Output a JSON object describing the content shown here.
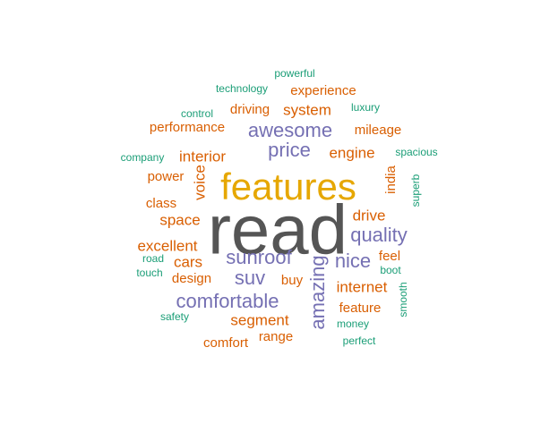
{
  "chart_data": {
    "type": "wordcloud",
    "palette": {
      "gray": "#555555",
      "gold": "#e6a700",
      "purple": "#7570b3",
      "orange": "#d95f02",
      "teal": "#1b9e77"
    },
    "words": [
      {
        "text": "read",
        "size_rank": 1,
        "color": "gray",
        "rotated": false
      },
      {
        "text": "features",
        "size_rank": 2,
        "color": "gold",
        "rotated": false
      },
      {
        "text": "awesome",
        "size_rank": 3,
        "color": "purple",
        "rotated": false
      },
      {
        "text": "sunroof",
        "size_rank": 3,
        "color": "purple",
        "rotated": false
      },
      {
        "text": "comfortable",
        "size_rank": 3,
        "color": "purple",
        "rotated": false
      },
      {
        "text": "amazing",
        "size_rank": 3,
        "color": "purple",
        "rotated": true
      },
      {
        "text": "price",
        "size_rank": 3,
        "color": "purple",
        "rotated": false
      },
      {
        "text": "quality",
        "size_rank": 3,
        "color": "purple",
        "rotated": false
      },
      {
        "text": "nice",
        "size_rank": 3,
        "color": "purple",
        "rotated": false
      },
      {
        "text": "suv",
        "size_rank": 3,
        "color": "purple",
        "rotated": false
      },
      {
        "text": "segment",
        "size_rank": 4,
        "color": "orange",
        "rotated": false
      },
      {
        "text": "engine",
        "size_rank": 4,
        "color": "orange",
        "rotated": false
      },
      {
        "text": "interior",
        "size_rank": 4,
        "color": "orange",
        "rotated": false
      },
      {
        "text": "drive",
        "size_rank": 4,
        "color": "orange",
        "rotated": false
      },
      {
        "text": "system",
        "size_rank": 4,
        "color": "orange",
        "rotated": false
      },
      {
        "text": "space",
        "size_rank": 4,
        "color": "orange",
        "rotated": false
      },
      {
        "text": "excellent",
        "size_rank": 4,
        "color": "orange",
        "rotated": false
      },
      {
        "text": "cars",
        "size_rank": 4,
        "color": "orange",
        "rotated": false
      },
      {
        "text": "internet",
        "size_rank": 4,
        "color": "orange",
        "rotated": false
      },
      {
        "text": "voice",
        "size_rank": 4,
        "color": "orange",
        "rotated": true
      },
      {
        "text": "driving",
        "size_rank": 5,
        "color": "orange",
        "rotated": false
      },
      {
        "text": "experience",
        "size_rank": 5,
        "color": "orange",
        "rotated": false
      },
      {
        "text": "performance",
        "size_rank": 5,
        "color": "orange",
        "rotated": false
      },
      {
        "text": "mileage",
        "size_rank": 5,
        "color": "orange",
        "rotated": false
      },
      {
        "text": "power",
        "size_rank": 5,
        "color": "orange",
        "rotated": false
      },
      {
        "text": "class",
        "size_rank": 5,
        "color": "orange",
        "rotated": false
      },
      {
        "text": "design",
        "size_rank": 5,
        "color": "orange",
        "rotated": false
      },
      {
        "text": "buy",
        "size_rank": 5,
        "color": "orange",
        "rotated": false
      },
      {
        "text": "feel",
        "size_rank": 5,
        "color": "orange",
        "rotated": false
      },
      {
        "text": "feature",
        "size_rank": 5,
        "color": "orange",
        "rotated": false
      },
      {
        "text": "range",
        "size_rank": 5,
        "color": "orange",
        "rotated": false
      },
      {
        "text": "comfort",
        "size_rank": 5,
        "color": "orange",
        "rotated": false
      },
      {
        "text": "india",
        "size_rank": 5,
        "color": "orange",
        "rotated": true
      },
      {
        "text": "technology",
        "size_rank": 6,
        "color": "teal",
        "rotated": false
      },
      {
        "text": "control",
        "size_rank": 6,
        "color": "teal",
        "rotated": false
      },
      {
        "text": "luxury",
        "size_rank": 6,
        "color": "teal",
        "rotated": false
      },
      {
        "text": "powerful",
        "size_rank": 6,
        "color": "teal",
        "rotated": false
      },
      {
        "text": "company",
        "size_rank": 6,
        "color": "teal",
        "rotated": false
      },
      {
        "text": "spacious",
        "size_rank": 6,
        "color": "teal",
        "rotated": false
      },
      {
        "text": "road",
        "size_rank": 6,
        "color": "teal",
        "rotated": false
      },
      {
        "text": "touch",
        "size_rank": 6,
        "color": "teal",
        "rotated": false
      },
      {
        "text": "boot",
        "size_rank": 6,
        "color": "teal",
        "rotated": false
      },
      {
        "text": "money",
        "size_rank": 6,
        "color": "teal",
        "rotated": false
      },
      {
        "text": "safety",
        "size_rank": 6,
        "color": "teal",
        "rotated": false
      },
      {
        "text": "perfect",
        "size_rank": 6,
        "color": "teal",
        "rotated": false
      },
      {
        "text": "smooth",
        "size_rank": 6,
        "color": "teal",
        "rotated": true
      },
      {
        "text": "superb",
        "size_rank": 6,
        "color": "teal",
        "rotated": true
      }
    ]
  }
}
